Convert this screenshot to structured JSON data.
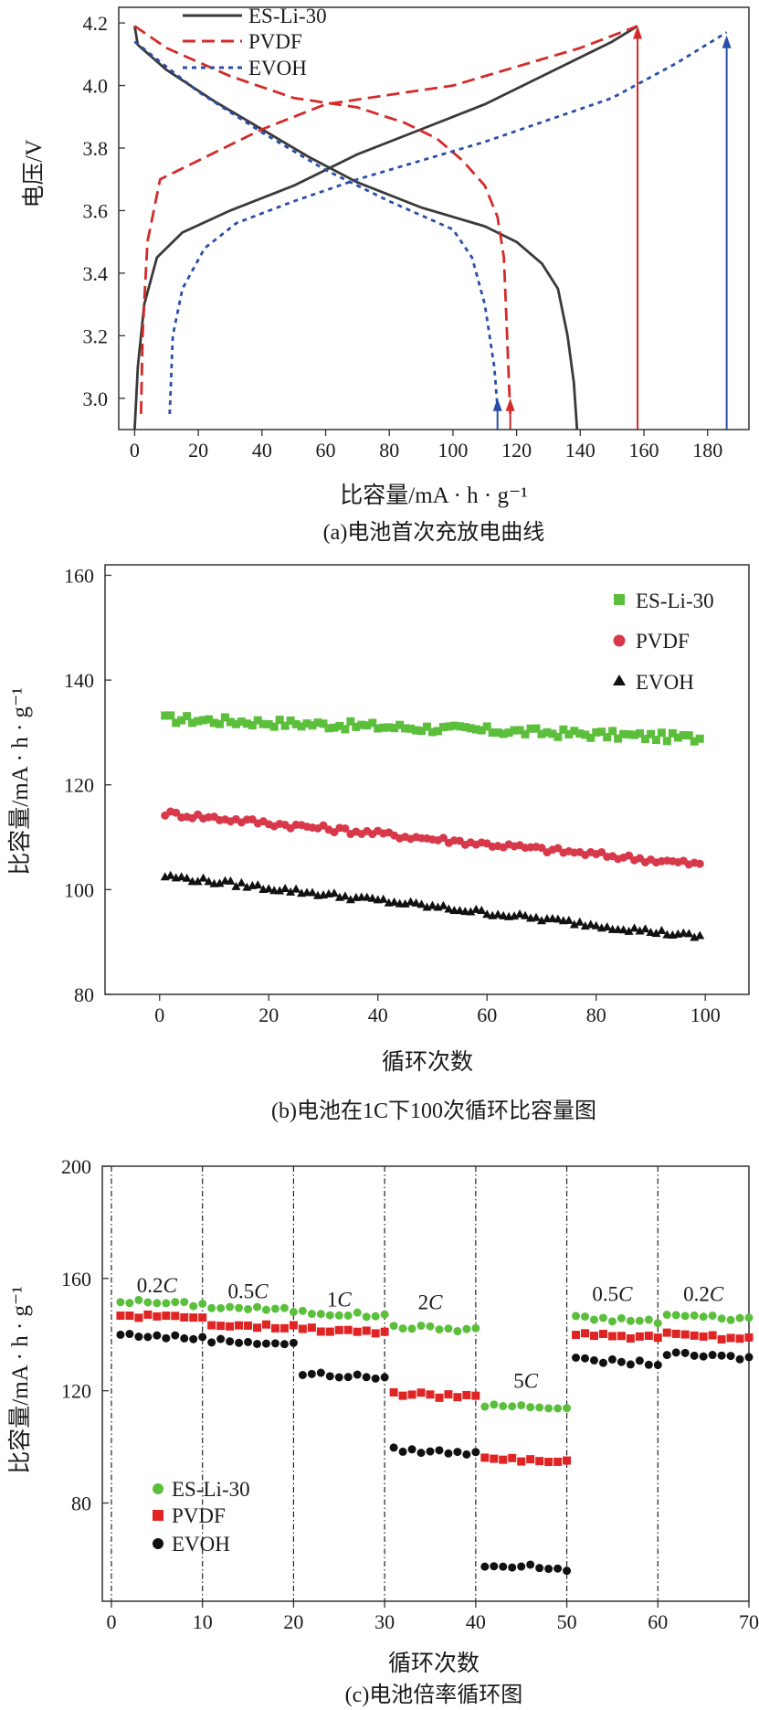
{
  "chart_data": [
    {
      "type": "line",
      "caption": "(a)电池首次充放电曲线",
      "xlabel": "比容量/mA · h · g⁻¹",
      "ylabel": "电压/V",
      "xlim": [
        -5,
        193
      ],
      "ylim": [
        2.9,
        4.25
      ],
      "x_ticks": [
        "0",
        "20",
        "40",
        "60",
        "80",
        "100",
        "120",
        "140",
        "160",
        "180"
      ],
      "y_ticks": [
        "3.0",
        "3.2",
        "3.4",
        "3.6",
        "3.8",
        "4.0",
        "4.2"
      ],
      "x_tick_values": [
        0,
        20,
        40,
        60,
        80,
        100,
        120,
        140,
        160,
        180
      ],
      "y_tick_values": [
        3.0,
        3.2,
        3.4,
        3.6,
        3.8,
        4.0,
        4.2
      ],
      "legend_position": "top-left",
      "series": [
        {
          "name": "ES-Li-30",
          "color": "#3a3a3a",
          "style": "solid",
          "charge": [
            [
              0,
              2.9
            ],
            [
              1,
              3.1
            ],
            [
              3,
              3.3
            ],
            [
              7,
              3.45
            ],
            [
              15,
              3.53
            ],
            [
              30,
              3.6
            ],
            [
              50,
              3.68
            ],
            [
              70,
              3.78
            ],
            [
              90,
              3.86
            ],
            [
              110,
              3.94
            ],
            [
              130,
              4.04
            ],
            [
              150,
              4.14
            ],
            [
              158,
              4.19
            ]
          ],
          "discharge": [
            [
              0,
              4.19
            ],
            [
              1,
              4.13
            ],
            [
              10,
              4.05
            ],
            [
              25,
              3.95
            ],
            [
              40,
              3.86
            ],
            [
              55,
              3.77
            ],
            [
              70,
              3.69
            ],
            [
              90,
              3.61
            ],
            [
              110,
              3.55
            ],
            [
              120,
              3.5
            ],
            [
              128,
              3.43
            ],
            [
              133,
              3.35
            ],
            [
              136,
              3.2
            ],
            [
              138,
              3.05
            ],
            [
              139,
              2.9
            ]
          ]
        },
        {
          "name": "PVDF",
          "color": "#d42a2a",
          "style": "dashed",
          "charge": [
            [
              2,
              2.95
            ],
            [
              2.5,
              3.2
            ],
            [
              4,
              3.5
            ],
            [
              8,
              3.7
            ],
            [
              20,
              3.76
            ],
            [
              40,
              3.86
            ],
            [
              60,
              3.94
            ],
            [
              80,
              3.97
            ],
            [
              100,
              4.0
            ],
            [
              120,
              4.06
            ],
            [
              140,
              4.12
            ],
            [
              158,
              4.19
            ]
          ],
          "discharge": [
            [
              0,
              4.19
            ],
            [
              10,
              4.12
            ],
            [
              30,
              4.03
            ],
            [
              50,
              3.96
            ],
            [
              70,
              3.93
            ],
            [
              85,
              3.88
            ],
            [
              95,
              3.83
            ],
            [
              103,
              3.76
            ],
            [
              110,
              3.68
            ],
            [
              114,
              3.58
            ],
            [
              116,
              3.45
            ],
            [
              117,
              3.2
            ],
            [
              118,
              2.95
            ]
          ]
        },
        {
          "name": "EVOH",
          "color": "#2a4da8",
          "style": "dotted",
          "charge": [
            [
              11,
              2.95
            ],
            [
              12,
              3.2
            ],
            [
              15,
              3.35
            ],
            [
              22,
              3.48
            ],
            [
              32,
              3.56
            ],
            [
              50,
              3.63
            ],
            [
              70,
              3.7
            ],
            [
              90,
              3.76
            ],
            [
              110,
              3.82
            ],
            [
              130,
              3.89
            ],
            [
              150,
              3.96
            ],
            [
              170,
              4.07
            ],
            [
              186,
              4.17
            ]
          ],
          "discharge": [
            [
              0,
              4.14
            ],
            [
              20,
              3.98
            ],
            [
              40,
              3.85
            ],
            [
              60,
              3.73
            ],
            [
              80,
              3.63
            ],
            [
              100,
              3.54
            ],
            [
              106,
              3.45
            ],
            [
              110,
              3.3
            ],
            [
              113,
              3.1
            ],
            [
              114,
              2.97
            ]
          ]
        }
      ],
      "annotations": [
        {
          "type": "arrow",
          "x": 114,
          "color": "#2a4da8"
        },
        {
          "type": "arrow",
          "x": 118,
          "color": "#d42a2a"
        },
        {
          "type": "arrow",
          "x": 158,
          "color": "#d42a2a"
        },
        {
          "type": "arrow",
          "x": 186,
          "color": "#2a4da8"
        }
      ]
    },
    {
      "type": "scatter",
      "caption": "(b)电池在1C下100次循环比容量图",
      "xlabel": "循环次数",
      "ylabel": "比容量/mA · h · g⁻¹",
      "xlim": [
        -10,
        108
      ],
      "ylim": [
        80,
        162
      ],
      "x_ticks": [
        "0",
        "20",
        "40",
        "60",
        "80",
        "100"
      ],
      "y_ticks": [
        "80",
        "100",
        "120",
        "140",
        "160"
      ],
      "x_tick_values": [
        0,
        20,
        40,
        60,
        80,
        100
      ],
      "y_tick_values": [
        80,
        100,
        120,
        140,
        160
      ],
      "legend_position": "top-right",
      "series": [
        {
          "name": "ES-Li-30",
          "color": "#5bbf3c",
          "marker": "square",
          "start": 132.6,
          "end": 128.9,
          "noise": 0.8
        },
        {
          "name": "PVDF",
          "color": "#d8394a",
          "marker": "circle",
          "start": 114.6,
          "end": 104.8,
          "noise": 0.6
        },
        {
          "name": "EVOH",
          "color": "#111111",
          "marker": "triangle",
          "start": 102.6,
          "end": 91.0,
          "noise": 0.5
        }
      ]
    },
    {
      "type": "scatter",
      "caption": "(c)电池倍率循环图",
      "xlabel": "循环次数",
      "ylabel": "比容量/mA · h · g⁻¹",
      "xlim": [
        -1,
        70
      ],
      "ylim": [
        45,
        200
      ],
      "x_ticks": [
        "0",
        "10",
        "20",
        "30",
        "40",
        "50",
        "60",
        "70"
      ],
      "y_ticks": [
        "80",
        "120",
        "160",
        "200"
      ],
      "x_tick_values": [
        0,
        10,
        20,
        30,
        40,
        50,
        60,
        70
      ],
      "y_tick_values": [
        80,
        120,
        160,
        200
      ],
      "legend_position": "bottom-left",
      "segment_dividers": [
        0,
        10,
        20,
        30,
        40,
        50,
        60
      ],
      "rate_labels": [
        {
          "num": "0.2",
          "unit": "C",
          "x": 5,
          "y": 155
        },
        {
          "num": "0.5",
          "unit": "C",
          "x": 15,
          "y": 153
        },
        {
          "num": "1",
          "unit": "C",
          "x": 25,
          "y": 150
        },
        {
          "num": "2",
          "unit": "C",
          "x": 35,
          "y": 149
        },
        {
          "num": "5",
          "unit": "C",
          "x": 45.5,
          "y": 121
        },
        {
          "num": "0.5",
          "unit": "C",
          "x": 55,
          "y": 152
        },
        {
          "num": "0.2",
          "unit": "C",
          "x": 65,
          "y": 152
        }
      ],
      "series": [
        {
          "name": "ES-Li-30",
          "color": "#5bbf3c",
          "marker": "circle",
          "levels": [
            152,
            150,
            148,
            143,
            115,
            146,
            147
          ]
        },
        {
          "name": "PVDF",
          "color": "#e02424",
          "marker": "square",
          "levels": [
            147,
            144,
            142,
            119,
            96,
            140,
            140
          ]
        },
        {
          "name": "EVOH",
          "color": "#111111",
          "marker": "circle",
          "levels": [
            140,
            138,
            126,
            99,
            58,
            131,
            133
          ]
        }
      ]
    }
  ]
}
